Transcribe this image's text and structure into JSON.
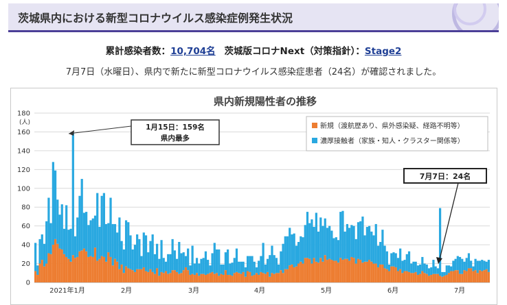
{
  "header": {
    "title": "茨城県内における新型コロナウイルス感染症例発生状況"
  },
  "summary": {
    "cumulative_label": "累計感染者数：",
    "cumulative_value": "10,704名",
    "next_label": "茨城版コロナNext（対策指針）：",
    "next_value": "Stage2"
  },
  "notice": "7月7日（水曜日）、県内で新たに新型コロナウイルス感染症患者（24名）が確認されました。",
  "chart_data": {
    "type": "bar",
    "title": "県内新規陽性者の推移",
    "ylabel": "(人)",
    "ylim": [
      0,
      180
    ],
    "yticks": [
      0,
      20,
      40,
      60,
      80,
      100,
      120,
      140,
      160,
      180
    ],
    "xlabels": [
      "2021年1月",
      "2月",
      "3月",
      "4月",
      "5月",
      "6月",
      "7月"
    ],
    "stacked": true,
    "grid": true,
    "legend_position": "top-right",
    "colors": {
      "new": "#ed7d31",
      "contact": "#29a8e0"
    },
    "series": [
      {
        "name": "新規（渡航歴あり、県外感染疑、経路不明等）",
        "color": "#ed7d31",
        "values": [
          12,
          8,
          20,
          24,
          17,
          20,
          31,
          30,
          40,
          46,
          41,
          36,
          35,
          30,
          27,
          25,
          22,
          29,
          26,
          27,
          33,
          34,
          36,
          33,
          27,
          28,
          27,
          37,
          23,
          25,
          28,
          27,
          22,
          32,
          27,
          18,
          25,
          22,
          14,
          19,
          10,
          17,
          15,
          14,
          13,
          11,
          14,
          14,
          14,
          16,
          12,
          11,
          14,
          11,
          9,
          15,
          7,
          11,
          10,
          12,
          9,
          10,
          13,
          13,
          11,
          9,
          10,
          13,
          16,
          13,
          8,
          9,
          8,
          10,
          7,
          9,
          9,
          8,
          9,
          10,
          11,
          9,
          10,
          7,
          9,
          8,
          13,
          8,
          8,
          7,
          10,
          11,
          10,
          9,
          11,
          6,
          12,
          11,
          7,
          8,
          10,
          8,
          11,
          10,
          9,
          11,
          6,
          10,
          9,
          10,
          10,
          13,
          10,
          14,
          14,
          18,
          19,
          16,
          17,
          20,
          22,
          20,
          26,
          26,
          25,
          20,
          26,
          22,
          21,
          26,
          22,
          29,
          24,
          25,
          24,
          23,
          23,
          21,
          26,
          24,
          25,
          25,
          23,
          27,
          26,
          20,
          25,
          24,
          21,
          22,
          22,
          24,
          22,
          20,
          20,
          16,
          19,
          19,
          15,
          14,
          12,
          17,
          17,
          16,
          12,
          14,
          10,
          12,
          12,
          11,
          10,
          10,
          11,
          8,
          9,
          12,
          10,
          9,
          7,
          8,
          9,
          9,
          9,
          7,
          6,
          7,
          8,
          10,
          12,
          12,
          13,
          13,
          9,
          9,
          13,
          12,
          15,
          15,
          12,
          13,
          10,
          13,
          12,
          13,
          14,
          11
        ]
      },
      {
        "name": "濃厚接触者（家族・知人・クラスター関係等）",
        "color": "#29a8e0",
        "values": [
          30,
          10,
          26,
          27,
          24,
          45,
          59,
          33,
          88,
          73,
          47,
          36,
          48,
          27,
          55,
          31,
          35,
          130,
          23,
          42,
          59,
          76,
          38,
          42,
          34,
          38,
          41,
          34,
          72,
          34,
          64,
          68,
          40,
          31,
          63,
          44,
          37,
          31,
          55,
          25,
          25,
          49,
          49,
          36,
          22,
          29,
          37,
          32,
          14,
          37,
          38,
          21,
          30,
          40,
          21,
          26,
          18,
          34,
          16,
          10,
          21,
          20,
          33,
          21,
          14,
          34,
          21,
          19,
          12,
          23,
          10,
          30,
          12,
          16,
          13,
          16,
          17,
          25,
          15,
          8,
          20,
          33,
          25,
          28,
          10,
          11,
          19,
          27,
          12,
          14,
          16,
          25,
          12,
          13,
          11,
          10,
          16,
          17,
          21,
          14,
          6,
          15,
          17,
          32,
          10,
          14,
          23,
          29,
          20,
          16,
          9,
          20,
          31,
          35,
          35,
          40,
          32,
          36,
          22,
          23,
          27,
          28,
          35,
          49,
          38,
          47,
          33,
          52,
          33,
          43,
          38,
          39,
          34,
          35,
          31,
          24,
          25,
          24,
          49,
          52,
          29,
          37,
          35,
          34,
          34,
          26,
          39,
          41,
          49,
          28,
          37,
          36,
          32,
          30,
          42,
          23,
          24,
          37,
          24,
          19,
          7,
          14,
          15,
          15,
          14,
          22,
          13,
          12,
          18,
          22,
          10,
          12,
          11,
          10,
          10,
          15,
          10,
          10,
          8,
          8,
          15,
          8,
          6,
          72,
          5,
          4,
          10,
          8,
          5,
          11,
          12,
          15,
          18,
          16,
          9,
          14,
          16,
          8,
          5,
          12,
          13,
          10,
          12,
          10,
          8,
          13
        ]
      }
    ],
    "annotations": [
      {
        "text": "1月15日：159名",
        "text2": "県内最多"
      },
      {
        "text": "7月7日：24名"
      }
    ]
  }
}
